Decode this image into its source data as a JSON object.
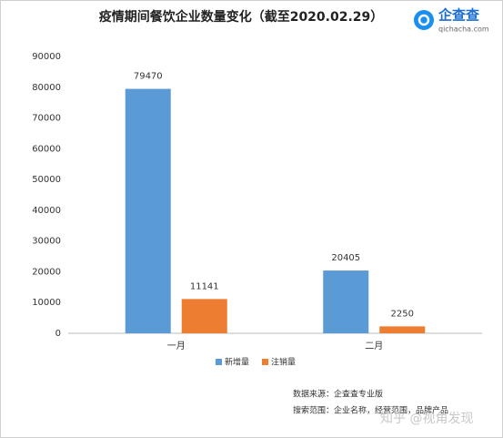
{
  "chart_data": {
    "type": "bar",
    "title": "疫情期间餐饮企业数量变化（截至2020.02.29）",
    "categories": [
      "一月",
      "二月"
    ],
    "series": [
      {
        "name": "新增量",
        "color": "#5b9bd5",
        "values": [
          79470,
          20405
        ]
      },
      {
        "name": "注销量",
        "color": "#ed7d31",
        "values": [
          11141,
          2250
        ]
      }
    ],
    "ylim": [
      0,
      90000
    ],
    "yticks": [
      0,
      10000,
      20000,
      30000,
      40000,
      50000,
      60000,
      70000,
      80000,
      90000
    ],
    "legend": "bottom",
    "notes": [
      "数据来源：企查查专业版",
      "搜索范围：企业名称，经营范围，品牌产品"
    ]
  },
  "brand": {
    "name": "企查查",
    "url": "qichacha.com"
  },
  "watermark": "知乎 @视角发现"
}
